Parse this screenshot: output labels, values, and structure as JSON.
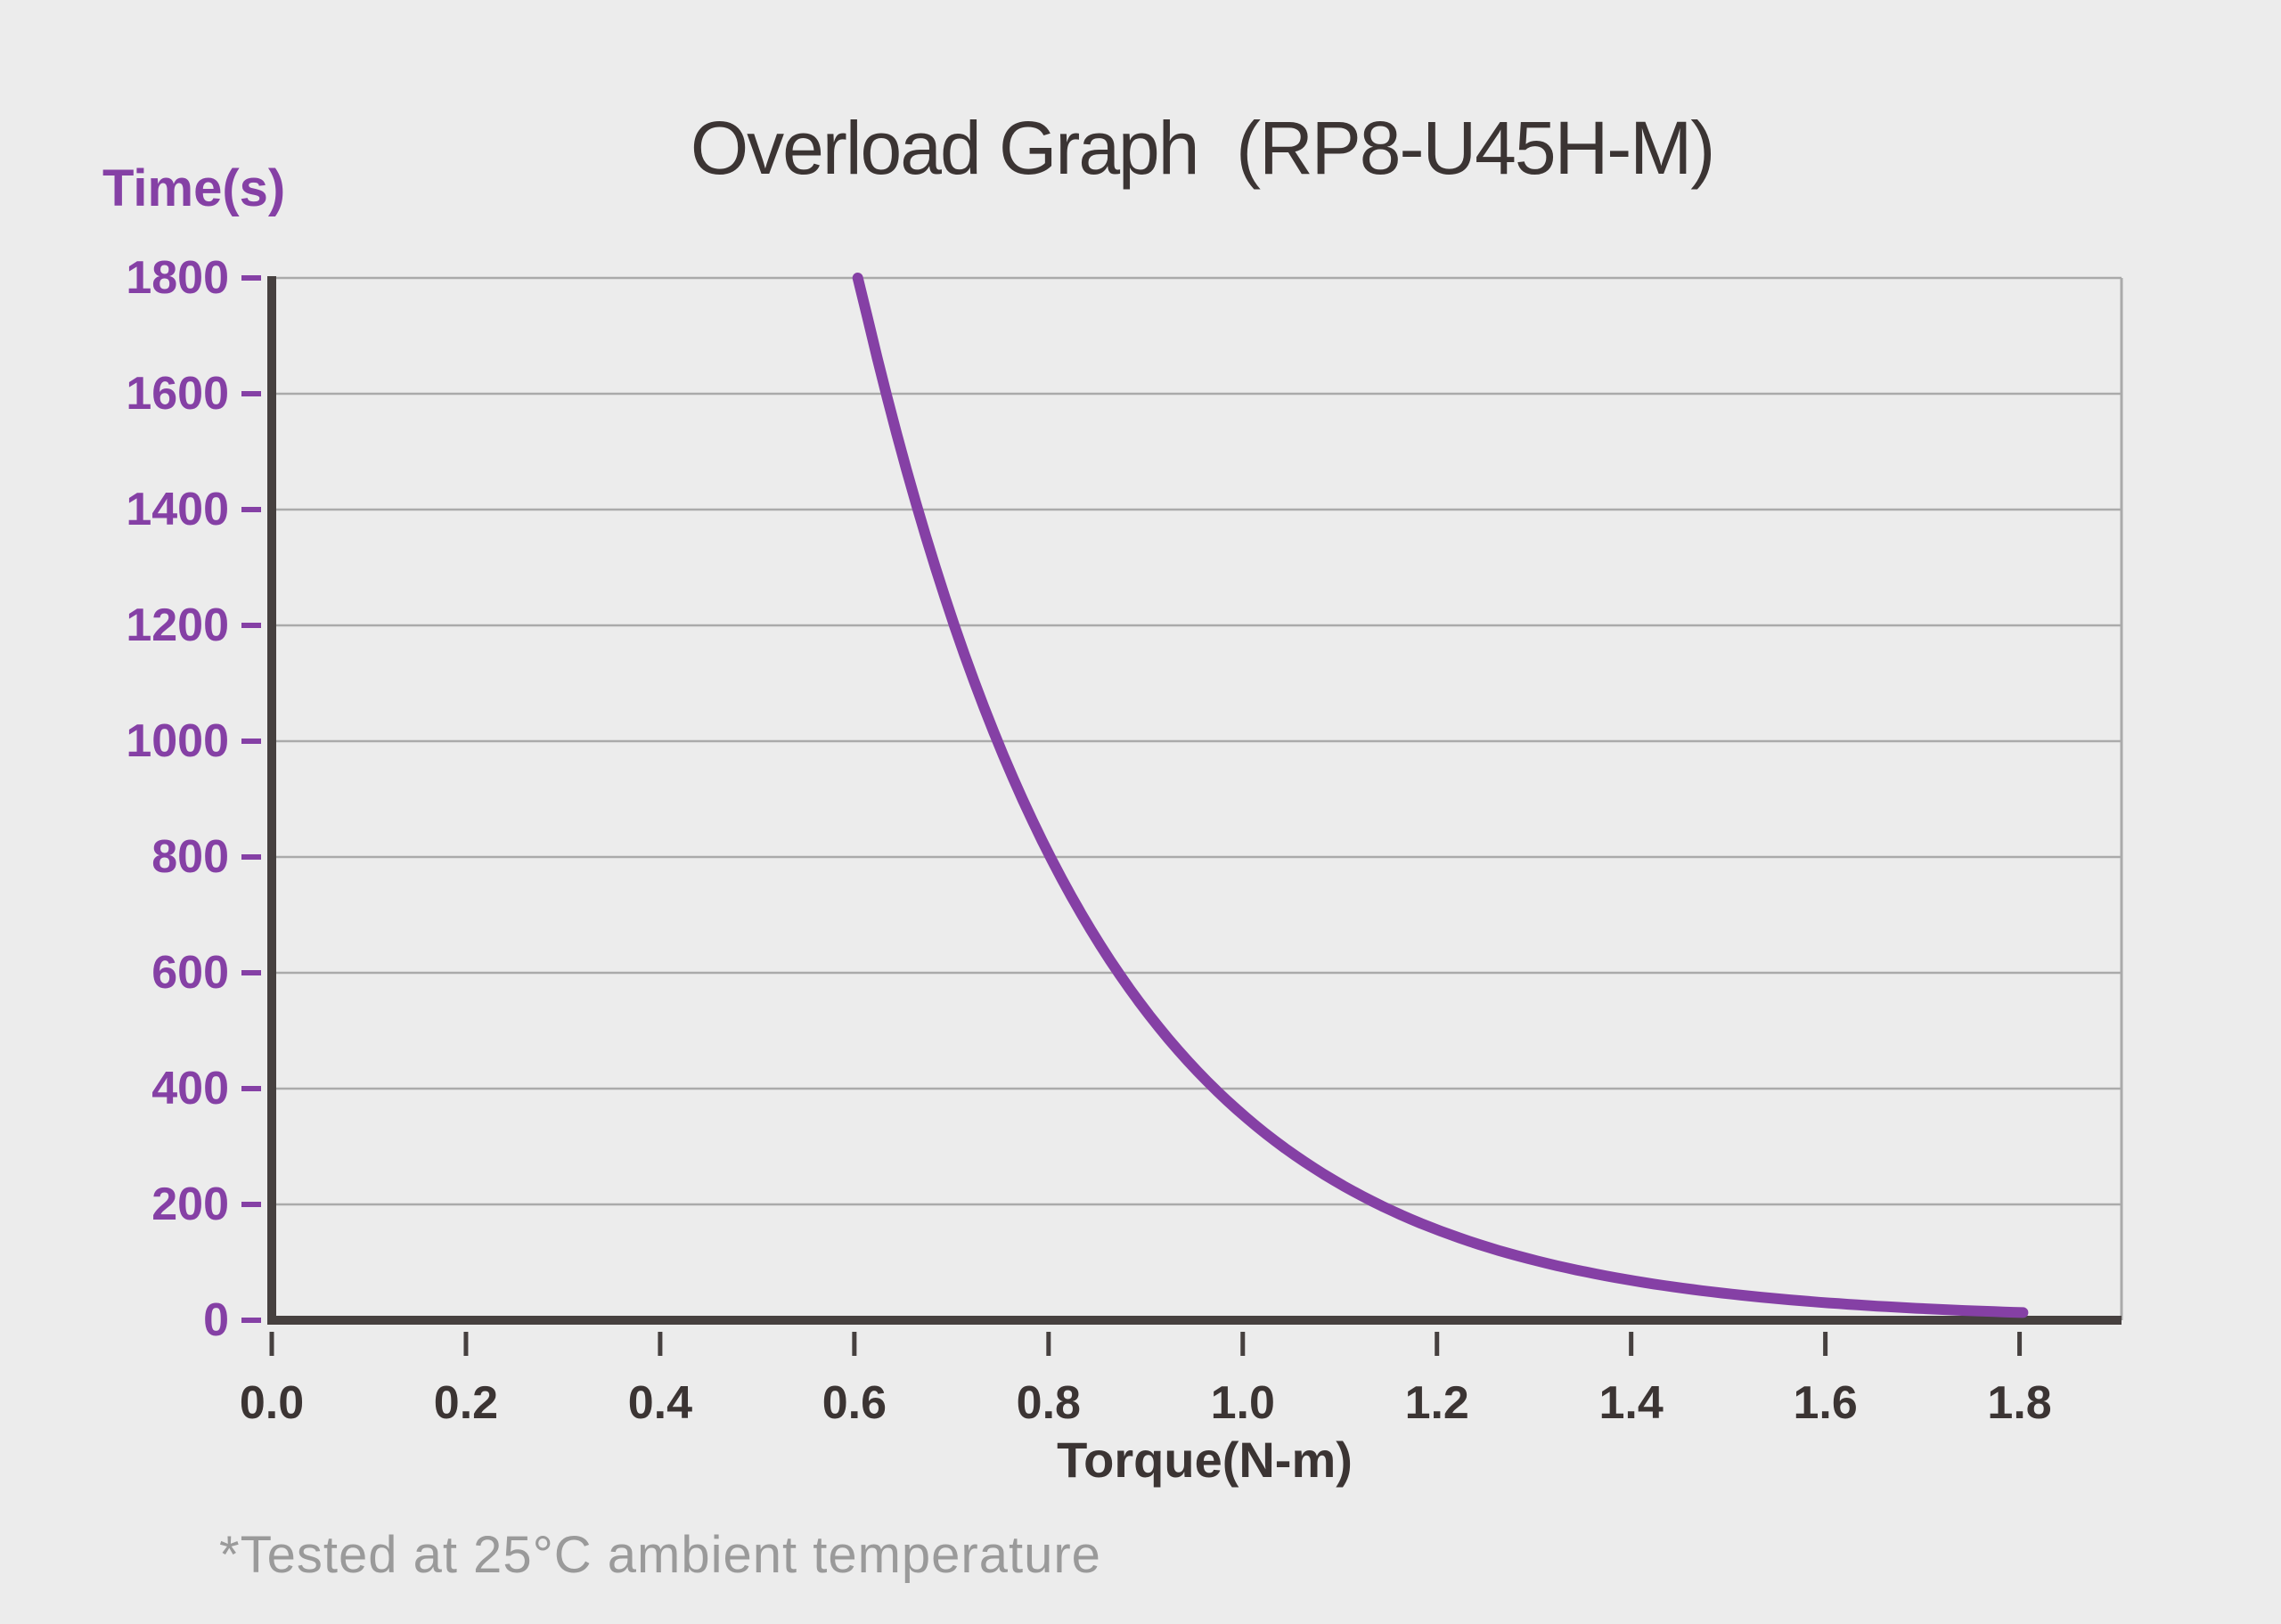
{
  "header": {
    "title": "Overload Graph  (RP8-U45H-M)"
  },
  "chart": {
    "y_axis_label": "Time(s)",
    "x_axis_label": "Torque(N-m)",
    "footnote": "*Tested at 25°C ambient temperature"
  },
  "colors": {
    "background": "#ececec",
    "accent_purple": "#8540a5",
    "text_dark": "#3b3433",
    "axis_dark": "#46403f",
    "gridline": "#aaaaaa",
    "footnote_gray": "#9a9a9a"
  },
  "chart_data": {
    "type": "line",
    "title": "Overload Graph (RP8-U45H-M)",
    "xlabel": "Torque(N-m)",
    "ylabel": "Time(s)",
    "grid": "horizontal-only",
    "legend": "none",
    "x_axis": {
      "min": 0.0,
      "max": 1.905,
      "ticks": [
        0.0,
        0.2,
        0.4,
        0.6,
        0.8,
        1.0,
        1.2,
        1.4,
        1.6,
        1.8
      ],
      "tick_labels": [
        "0.0",
        "0.2",
        "0.4",
        "0.6",
        "0.8",
        "1.0",
        "1.2",
        "1.4",
        "1.6",
        "1.8"
      ]
    },
    "y_axis": {
      "min": 0,
      "max": 1800,
      "ticks": [
        0,
        200,
        400,
        600,
        800,
        1000,
        1200,
        1400,
        1600,
        1800
      ],
      "tick_labels": [
        "0",
        "200",
        "400",
        "600",
        "800",
        "1000",
        "1200",
        "1400",
        "1600",
        "1800"
      ]
    },
    "series": [
      {
        "name": "overload-time-vs-torque",
        "color": "#8540a5",
        "points": [
          [
            0.6,
            1800
          ],
          [
            0.63,
            1600
          ],
          [
            0.67,
            1400
          ],
          [
            0.7,
            1200
          ],
          [
            0.75,
            1000
          ],
          [
            0.8,
            800
          ],
          [
            0.87,
            600
          ],
          [
            0.96,
            400
          ],
          [
            1.13,
            200
          ],
          [
            1.31,
            100
          ],
          [
            1.47,
            50
          ],
          [
            1.7,
            20
          ],
          [
            1.81,
            10
          ]
        ],
        "fit": {
          "model": "exponential",
          "A": 21420,
          "k": 4.1,
          "x_start": 0.6035,
          "x_end": 1.81
        }
      }
    ],
    "annotations": [
      "*Tested at 25°C ambient temperature"
    ]
  }
}
